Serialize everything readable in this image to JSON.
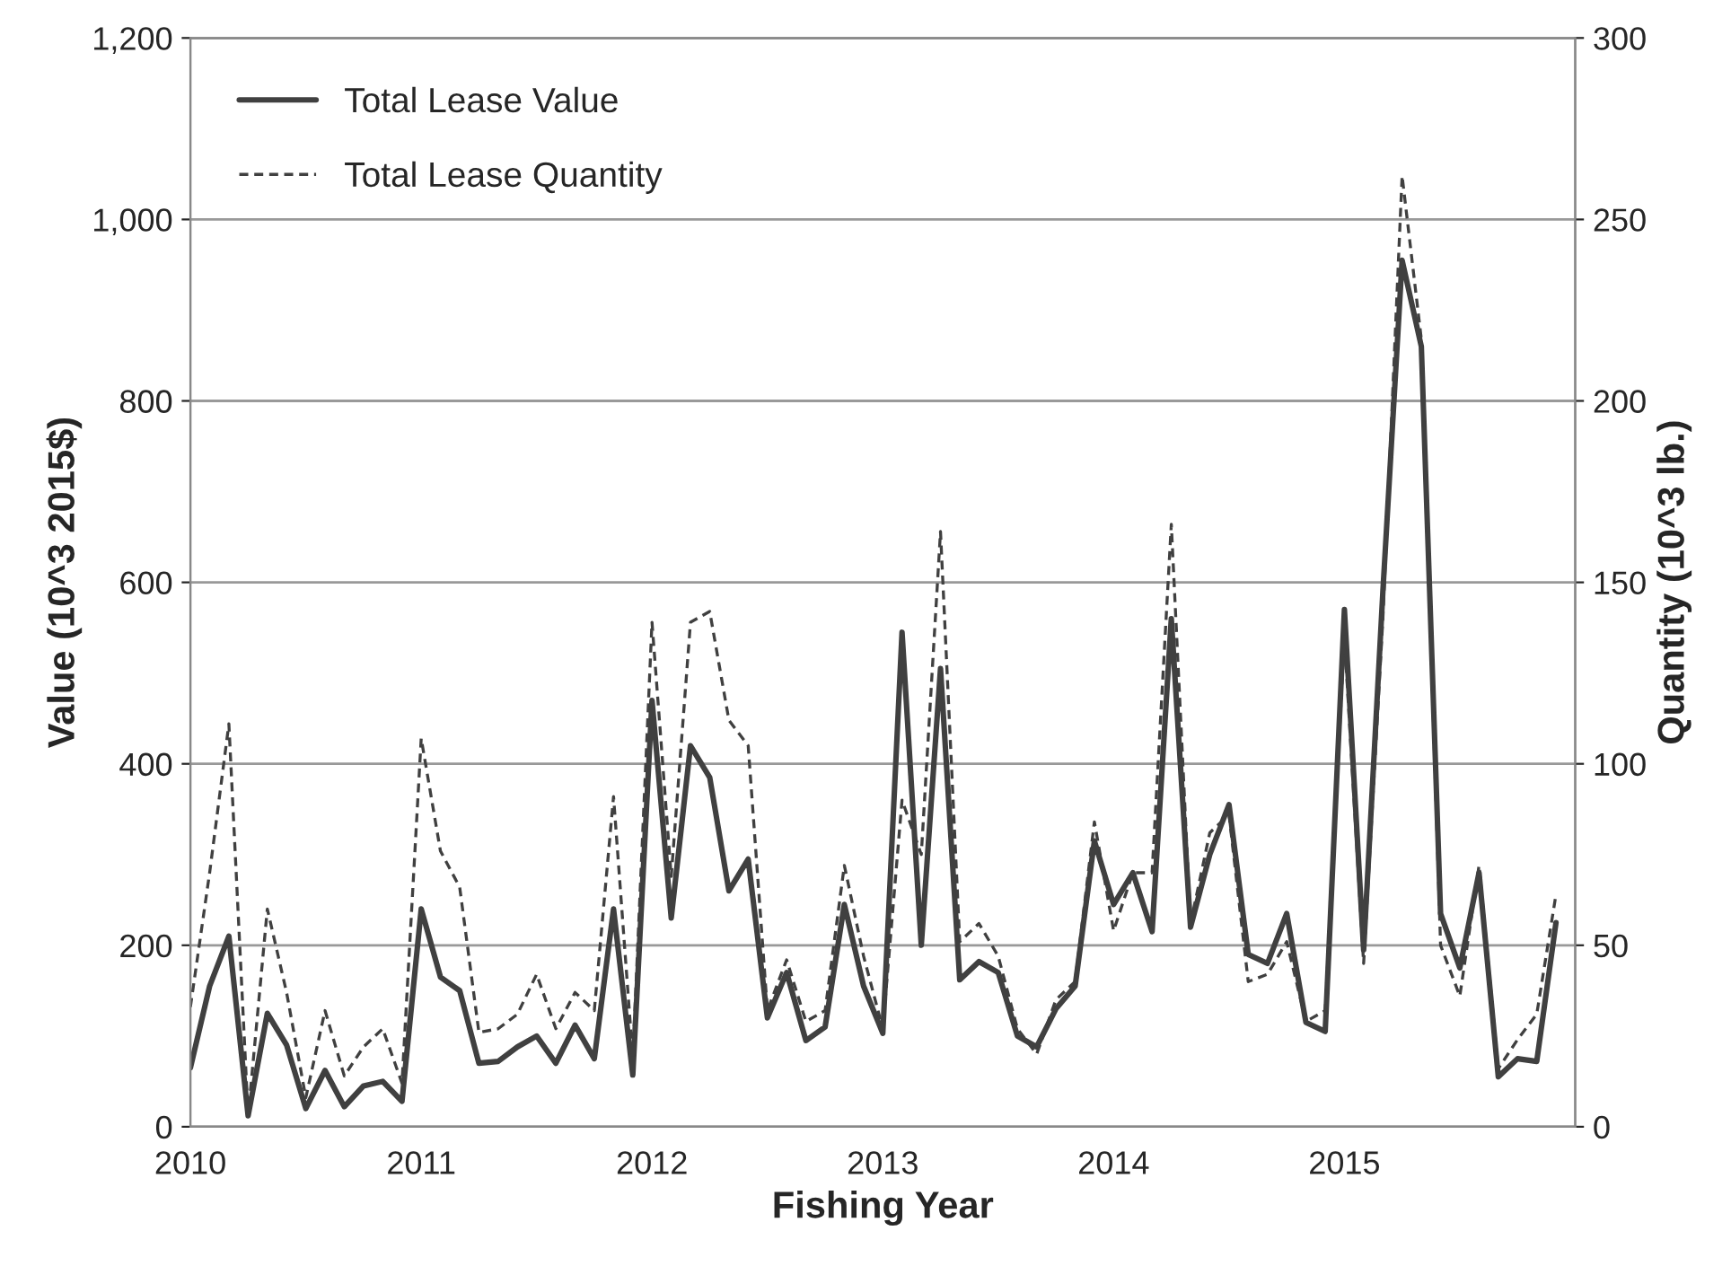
{
  "chart_data": {
    "type": "line",
    "xlabel": "Fishing Year",
    "ylabel": "Value (10^3 2015$)",
    "y2label": "Quantity (10^3 lb.)",
    "x": [
      2010.0,
      2010.0833,
      2010.1667,
      2010.25,
      2010.3333,
      2010.4167,
      2010.5,
      2010.5833,
      2010.6667,
      2010.75,
      2010.8333,
      2010.9167,
      2011.0,
      2011.0833,
      2011.1667,
      2011.25,
      2011.3333,
      2011.4167,
      2011.5,
      2011.5833,
      2011.6667,
      2011.75,
      2011.8333,
      2011.9167,
      2012.0,
      2012.0833,
      2012.1667,
      2012.25,
      2012.3333,
      2012.4167,
      2012.5,
      2012.5833,
      2012.6667,
      2012.75,
      2012.8333,
      2012.9167,
      2013.0,
      2013.0833,
      2013.1667,
      2013.25,
      2013.3333,
      2013.4167,
      2013.5,
      2013.5833,
      2013.6667,
      2013.75,
      2013.8333,
      2013.9167,
      2014.0,
      2014.0833,
      2014.1667,
      2014.25,
      2014.3333,
      2014.4167,
      2014.5,
      2014.5833,
      2014.6667,
      2014.75,
      2014.8333,
      2014.9167,
      2015.0,
      2015.0833,
      2015.1667,
      2015.25,
      2015.3333,
      2015.4167,
      2015.5,
      2015.5833,
      2015.6667,
      2015.75,
      2015.8333,
      2015.9167
    ],
    "series": [
      {
        "name": "Total Lease Value",
        "color": "#404040",
        "line_style": "solid",
        "values": [
          65,
          155,
          210,
          12,
          125,
          90,
          20,
          62,
          22,
          45,
          50,
          28,
          240,
          165,
          150,
          70,
          72,
          88,
          100,
          70,
          112,
          75,
          240,
          57,
          470,
          230,
          420,
          385,
          260,
          295,
          120,
          170,
          95,
          110,
          245,
          155,
          103,
          545,
          200,
          505,
          162,
          182,
          170,
          100,
          88,
          130,
          155,
          315,
          245,
          280,
          215,
          560,
          220,
          300,
          355,
          190,
          180,
          235,
          115,
          105,
          570,
          195,
          590,
          955,
          860,
          235,
          175,
          280,
          55,
          75,
          72,
          225
        ]
      },
      {
        "name": "Total Lease Quantity",
        "color": "#404040",
        "line_style": "dashed",
        "axis": "y2",
        "values": [
          33,
          70,
          111,
          3,
          60,
          37,
          8,
          32,
          14,
          22,
          27,
          12,
          107,
          76,
          66,
          26,
          27,
          31,
          42,
          27,
          37,
          32,
          91,
          19,
          139,
          69,
          139,
          142,
          112,
          105,
          32,
          46,
          29,
          32,
          72,
          47,
          27,
          90,
          75,
          164,
          51,
          56,
          47,
          27,
          20,
          35,
          40,
          84,
          54,
          70,
          70,
          166,
          56,
          81,
          86,
          40,
          42,
          51,
          29,
          32,
          135,
          45,
          140,
          262,
          217,
          50,
          36,
          72,
          16,
          24,
          31,
          64
        ]
      }
    ],
    "xlim": [
      2010,
      2016
    ],
    "xticks": [
      2010,
      2011,
      2012,
      2013,
      2014,
      2015
    ],
    "ylim": [
      0,
      1200
    ],
    "yticks": [
      0,
      200,
      400,
      600,
      800,
      {
        "value": 1000,
        "label": "1,000"
      },
      {
        "value": 1200,
        "label": "1,200"
      }
    ],
    "y2lim": [
      0,
      300
    ],
    "y2ticks": [
      0,
      50,
      100,
      150,
      200,
      250,
      300
    ],
    "grid": "y",
    "legend": "top left"
  }
}
